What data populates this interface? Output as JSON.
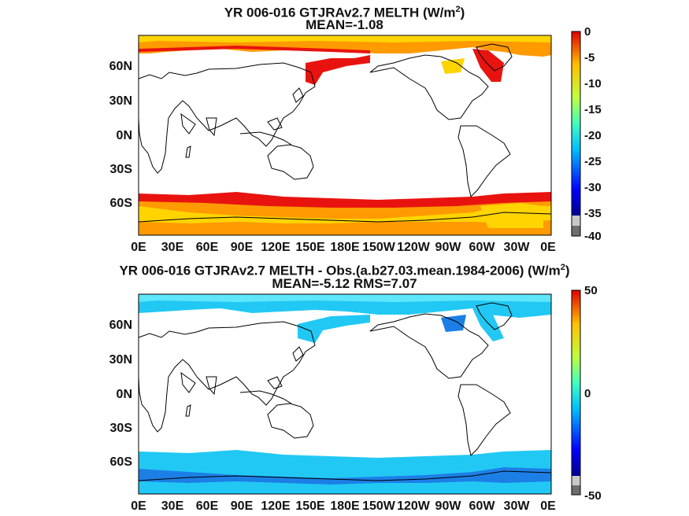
{
  "panels": [
    {
      "title_prefix": "YR 006-016 GTJRAv2.7  MELTH (W/m",
      "title_sup": "2",
      "title_suffix": ")",
      "subtitle": "MEAN=-1.08",
      "lat_labels": [
        "60N",
        "30N",
        "0N",
        "30S",
        "60S"
      ],
      "lon_labels": [
        "0E",
        "30E",
        "60E",
        "90E",
        "120E",
        "150E",
        "180E",
        "150W",
        "120W",
        "90W",
        "60W",
        "30W",
        "0E"
      ],
      "colorbar": {
        "ticks": [
          "0",
          "-5",
          "-10",
          "-15",
          "-20",
          "-25",
          "-30",
          "-35",
          "-40"
        ],
        "min": -40,
        "max": 0
      }
    },
    {
      "title_prefix": "YR 006-016 GTJRAv2.7 MELTH - Obs.(a.b27.03.mean.1984-2006) (W/m",
      "title_sup": "2",
      "title_suffix": ")",
      "subtitle": "MEAN=-5.12 RMS=7.07",
      "lat_labels": [
        "60N",
        "30N",
        "0N",
        "30S",
        "60S"
      ],
      "lon_labels": [
        "0E",
        "30E",
        "60E",
        "90E",
        "120E",
        "150E",
        "180E",
        "150W",
        "120W",
        "90W",
        "60W",
        "30W",
        "0E"
      ],
      "colorbar": {
        "ticks": [
          "50",
          "0",
          "-50"
        ],
        "min": -50,
        "max": 50
      }
    }
  ],
  "colors": {
    "sea_ice_top_edge": "#e8130f",
    "sea_ice_top_mid": "#ff9a00",
    "sea_ice_top_inner": "#ffd400",
    "sea_ice_bottom_main": "#22c8f4",
    "sea_ice_bottom_deep": "#1c7fe6",
    "land_outline": "#000000"
  }
}
